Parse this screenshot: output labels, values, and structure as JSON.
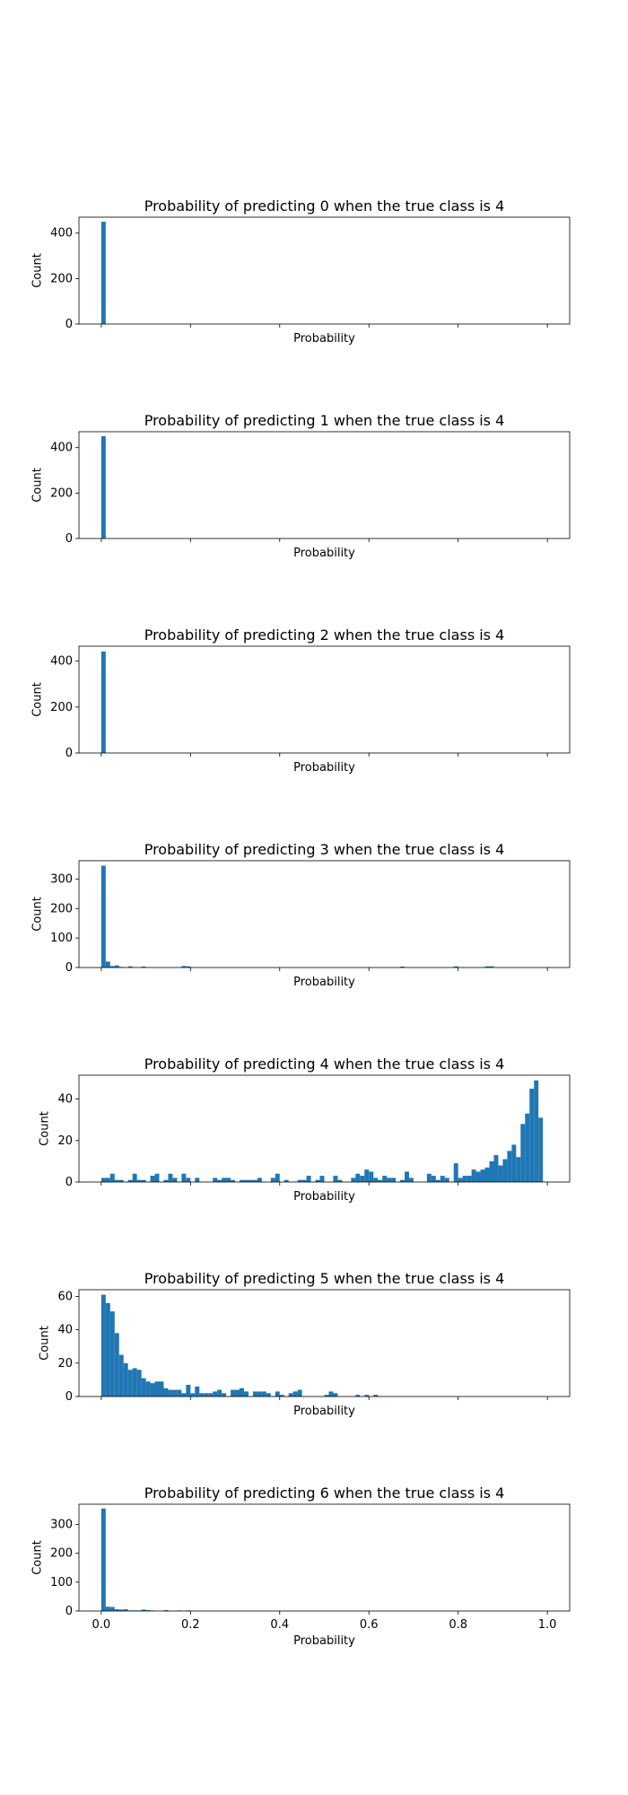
{
  "chart_data": [
    {
      "type": "bar",
      "title": "Probability of predicting 0 when the true class is 4",
      "xlabel": "Probability",
      "ylabel": "Count",
      "xlim": [
        -0.05,
        1.05
      ],
      "ylim": [
        0,
        470
      ],
      "yticks": [
        0,
        200,
        400
      ],
      "xticks": [
        0.0,
        0.2,
        0.4,
        0.6,
        0.8,
        1.0
      ],
      "show_xtick_labels": false,
      "color": "#1f77b4",
      "bin_width": 0.01,
      "bins": [
        [
          0.0,
          450
        ]
      ]
    },
    {
      "type": "bar",
      "title": "Probability of predicting 1 when the true class is 4",
      "xlabel": "Probability",
      "ylabel": "Count",
      "xlim": [
        -0.05,
        1.05
      ],
      "ylim": [
        0,
        470
      ],
      "yticks": [
        0,
        200,
        400
      ],
      "xticks": [
        0.0,
        0.2,
        0.4,
        0.6,
        0.8,
        1.0
      ],
      "show_xtick_labels": false,
      "color": "#1f77b4",
      "bin_width": 0.01,
      "bins": [
        [
          0.0,
          450
        ]
      ]
    },
    {
      "type": "bar",
      "title": "Probability of predicting 2 when the true class is 4",
      "xlabel": "Probability",
      "ylabel": "Count",
      "xlim": [
        -0.05,
        1.05
      ],
      "ylim": [
        0,
        465
      ],
      "yticks": [
        0,
        200,
        400
      ],
      "xticks": [
        0.0,
        0.2,
        0.4,
        0.6,
        0.8,
        1.0
      ],
      "show_xtick_labels": false,
      "color": "#1f77b4",
      "bin_width": 0.01,
      "bins": [
        [
          0.0,
          442
        ]
      ]
    },
    {
      "type": "bar",
      "title": "Probability of predicting 3 when the true class is 4",
      "xlabel": "Probability",
      "ylabel": "Count",
      "xlim": [
        -0.05,
        1.05
      ],
      "ylim": [
        0,
        362
      ],
      "yticks": [
        0,
        100,
        200,
        300
      ],
      "xticks": [
        0.0,
        0.2,
        0.4,
        0.6,
        0.8,
        1.0
      ],
      "show_xtick_labels": false,
      "color": "#1f77b4",
      "bin_width": 0.01,
      "bins": [
        [
          0.0,
          345
        ],
        [
          0.01,
          20
        ],
        [
          0.02,
          5
        ],
        [
          0.03,
          7
        ],
        [
          0.04,
          2
        ],
        [
          0.06,
          4
        ],
        [
          0.09,
          3
        ],
        [
          0.18,
          5
        ],
        [
          0.19,
          4
        ],
        [
          0.67,
          3
        ],
        [
          0.79,
          4
        ],
        [
          0.86,
          4
        ],
        [
          0.87,
          4
        ]
      ]
    },
    {
      "type": "bar",
      "title": "Probability of predicting 4 when the true class is 4",
      "xlabel": "Probability",
      "ylabel": "Count",
      "xlim": [
        -0.05,
        1.05
      ],
      "ylim": [
        0,
        51.5
      ],
      "yticks": [
        0,
        20,
        40
      ],
      "xticks": [
        0.0,
        0.2,
        0.4,
        0.6,
        0.8,
        1.0
      ],
      "show_xtick_labels": false,
      "color": "#1f77b4",
      "bin_width": 0.01,
      "bins": [
        [
          0.0,
          2
        ],
        [
          0.01,
          2
        ],
        [
          0.02,
          4
        ],
        [
          0.03,
          1
        ],
        [
          0.04,
          1
        ],
        [
          0.06,
          1
        ],
        [
          0.07,
          4
        ],
        [
          0.08,
          1
        ],
        [
          0.09,
          1
        ],
        [
          0.11,
          3
        ],
        [
          0.12,
          4
        ],
        [
          0.14,
          1
        ],
        [
          0.15,
          4
        ],
        [
          0.16,
          2
        ],
        [
          0.18,
          4
        ],
        [
          0.19,
          2
        ],
        [
          0.21,
          2
        ],
        [
          0.25,
          2
        ],
        [
          0.26,
          1
        ],
        [
          0.27,
          2
        ],
        [
          0.28,
          2
        ],
        [
          0.29,
          1
        ],
        [
          0.31,
          1
        ],
        [
          0.32,
          1
        ],
        [
          0.33,
          1
        ],
        [
          0.34,
          1
        ],
        [
          0.35,
          2
        ],
        [
          0.38,
          2
        ],
        [
          0.39,
          4
        ],
        [
          0.41,
          1
        ],
        [
          0.44,
          1
        ],
        [
          0.45,
          1
        ],
        [
          0.46,
          3
        ],
        [
          0.48,
          1
        ],
        [
          0.49,
          3
        ],
        [
          0.52,
          3
        ],
        [
          0.53,
          1
        ],
        [
          0.56,
          2
        ],
        [
          0.57,
          4
        ],
        [
          0.58,
          3
        ],
        [
          0.59,
          6
        ],
        [
          0.6,
          5
        ],
        [
          0.61,
          2
        ],
        [
          0.62,
          1
        ],
        [
          0.63,
          3
        ],
        [
          0.64,
          2
        ],
        [
          0.65,
          2
        ],
        [
          0.67,
          1
        ],
        [
          0.68,
          5
        ],
        [
          0.69,
          2
        ],
        [
          0.73,
          4
        ],
        [
          0.74,
          3
        ],
        [
          0.75,
          1
        ],
        [
          0.76,
          3
        ],
        [
          0.77,
          2
        ],
        [
          0.79,
          9
        ],
        [
          0.8,
          2
        ],
        [
          0.81,
          3
        ],
        [
          0.82,
          3
        ],
        [
          0.83,
          6
        ],
        [
          0.84,
          5
        ],
        [
          0.85,
          6
        ],
        [
          0.86,
          7
        ],
        [
          0.87,
          10
        ],
        [
          0.88,
          13
        ],
        [
          0.89,
          8
        ],
        [
          0.9,
          11
        ],
        [
          0.91,
          15
        ],
        [
          0.92,
          18
        ],
        [
          0.93,
          12
        ],
        [
          0.94,
          28
        ],
        [
          0.95,
          33
        ],
        [
          0.96,
          45
        ],
        [
          0.97,
          49
        ],
        [
          0.98,
          31
        ]
      ]
    },
    {
      "type": "bar",
      "title": "Probability of predicting 5 when the true class is 4",
      "xlabel": "Probability",
      "ylabel": "Count",
      "xlim": [
        -0.05,
        1.05
      ],
      "ylim": [
        0,
        64
      ],
      "yticks": [
        0,
        20,
        40,
        60
      ],
      "xticks": [
        0.0,
        0.2,
        0.4,
        0.6,
        0.8,
        1.0
      ],
      "show_xtick_labels": false,
      "color": "#1f77b4",
      "bin_width": 0.01,
      "bins": [
        [
          0.0,
          61
        ],
        [
          0.01,
          56
        ],
        [
          0.02,
          51
        ],
        [
          0.03,
          38
        ],
        [
          0.04,
          25
        ],
        [
          0.05,
          20
        ],
        [
          0.06,
          16
        ],
        [
          0.07,
          17
        ],
        [
          0.08,
          16
        ],
        [
          0.09,
          11
        ],
        [
          0.1,
          9
        ],
        [
          0.11,
          8
        ],
        [
          0.12,
          9
        ],
        [
          0.13,
          9
        ],
        [
          0.14,
          5
        ],
        [
          0.15,
          4
        ],
        [
          0.16,
          4
        ],
        [
          0.17,
          4
        ],
        [
          0.18,
          2
        ],
        [
          0.19,
          7
        ],
        [
          0.2,
          2
        ],
        [
          0.21,
          6
        ],
        [
          0.22,
          2
        ],
        [
          0.23,
          2
        ],
        [
          0.24,
          2
        ],
        [
          0.25,
          3
        ],
        [
          0.26,
          4
        ],
        [
          0.27,
          2
        ],
        [
          0.29,
          4
        ],
        [
          0.3,
          4
        ],
        [
          0.31,
          5
        ],
        [
          0.32,
          3
        ],
        [
          0.34,
          3
        ],
        [
          0.35,
          3
        ],
        [
          0.36,
          3
        ],
        [
          0.37,
          2
        ],
        [
          0.39,
          3
        ],
        [
          0.4,
          1
        ],
        [
          0.42,
          2
        ],
        [
          0.43,
          3
        ],
        [
          0.44,
          4
        ],
        [
          0.5,
          1
        ],
        [
          0.51,
          3
        ],
        [
          0.52,
          2
        ],
        [
          0.57,
          1
        ],
        [
          0.59,
          1
        ],
        [
          0.61,
          1
        ]
      ]
    },
    {
      "type": "bar",
      "title": "Probability of predicting 6 when the true class is 4",
      "xlabel": "Probability",
      "ylabel": "Count",
      "xlim": [
        -0.05,
        1.05
      ],
      "ylim": [
        0,
        370
      ],
      "yticks": [
        0,
        100,
        200,
        300
      ],
      "xticks": [
        0.0,
        0.2,
        0.4,
        0.6,
        0.8,
        1.0
      ],
      "xtick_labels": [
        "0.0",
        "0.2",
        "0.4",
        "0.6",
        "0.8",
        "1.0"
      ],
      "show_xtick_labels": true,
      "color": "#1f77b4",
      "bin_width": 0.01,
      "bins": [
        [
          0.0,
          355
        ],
        [
          0.01,
          15
        ],
        [
          0.02,
          14
        ],
        [
          0.03,
          6
        ],
        [
          0.04,
          5
        ],
        [
          0.05,
          6
        ],
        [
          0.06,
          2
        ],
        [
          0.07,
          2
        ],
        [
          0.08,
          2
        ],
        [
          0.09,
          5
        ],
        [
          0.1,
          3
        ],
        [
          0.11,
          2
        ],
        [
          0.14,
          3
        ],
        [
          0.17,
          2
        ],
        [
          0.19,
          2
        ]
      ]
    }
  ]
}
